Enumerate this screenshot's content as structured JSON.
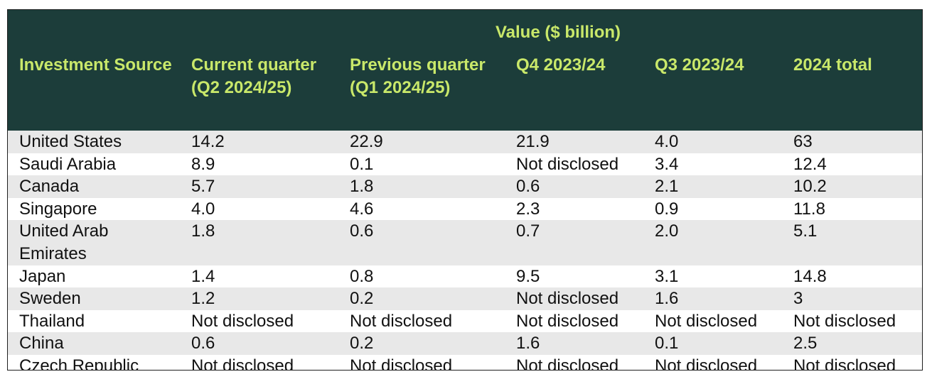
{
  "table": {
    "group_header": "Value ($ billion)",
    "columns": [
      "Investment Source",
      "Current quarter (Q2 2024/25)",
      "Previous quarter (Q1 2024/25)",
      "Q4 2023/24",
      "Q3 2023/24",
      "2024 total"
    ],
    "rows": [
      [
        "United States",
        "14.2",
        "22.9",
        "21.9",
        "4.0",
        "63"
      ],
      [
        "Saudi Arabia",
        "8.9",
        "0.1",
        "Not disclosed",
        "3.4",
        "12.4"
      ],
      [
        "Canada",
        "5.7",
        "1.8",
        "0.6",
        "2.1",
        "10.2"
      ],
      [
        "Singapore",
        "4.0",
        "4.6",
        "2.3",
        "0.9",
        "11.8"
      ],
      [
        "United Arab Emirates",
        "1.8",
        "0.6",
        "0.7",
        "2.0",
        "5.1"
      ],
      [
        "Japan",
        "1.4",
        "0.8",
        "9.5",
        "3.1",
        "14.8"
      ],
      [
        "Sweden",
        "1.2",
        "0.2",
        "Not disclosed",
        "1.6",
        "3"
      ],
      [
        "Thailand",
        "Not disclosed",
        "Not disclosed",
        "Not disclosed",
        "Not disclosed",
        "Not disclosed"
      ],
      [
        "China",
        "0.6",
        "0.2",
        "1.6",
        "0.1",
        "2.5"
      ],
      [
        "Czech Republic",
        "Not disclosed",
        "Not disclosed",
        "Not disclosed",
        "Not disclosed",
        "Not disclosed"
      ]
    ]
  },
  "colors": {
    "header_bg": "#1c3d3a",
    "header_text": "#c9e86a",
    "row_stripe": "#e8e8e8",
    "row_plain": "#ffffff"
  }
}
